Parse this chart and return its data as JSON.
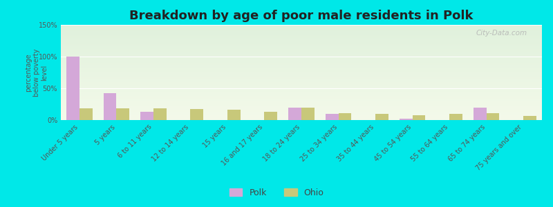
{
  "title": "Breakdown by age of poor male residents in Polk",
  "ylabel": "percentage\nbelow poverty\nlevel",
  "categories": [
    "Under 5 years",
    "5 years",
    "6 to 11 years",
    "12 to 14 years",
    "15 years",
    "16 and 17 years",
    "18 to 24 years",
    "25 to 34 years",
    "35 to 44 years",
    "45 to 54 years",
    "55 to 64 years",
    "65 to 74 years",
    "75 years and over"
  ],
  "polk_values": [
    100,
    42,
    13,
    0,
    0,
    0,
    20,
    10,
    0,
    2,
    0,
    20,
    0
  ],
  "ohio_values": [
    18,
    18,
    18,
    17,
    16,
    13,
    20,
    11,
    10,
    8,
    10,
    11,
    7
  ],
  "polk_color": "#d4a8d8",
  "ohio_color": "#c8c87a",
  "outer_bg": "#00e8e8",
  "plot_bg_top": "#e0f0dc",
  "plot_bg_bottom": "#f4fae8",
  "ylim": [
    0,
    150
  ],
  "yticks": [
    0,
    50,
    100,
    150
  ],
  "ytick_labels": [
    "0%",
    "50%",
    "100%",
    "150%"
  ],
  "watermark": "City-Data.com",
  "legend_polk": "Polk",
  "legend_ohio": "Ohio",
  "bar_width": 0.35,
  "title_fontsize": 13,
  "axis_label_fontsize": 7,
  "tick_fontsize": 7
}
